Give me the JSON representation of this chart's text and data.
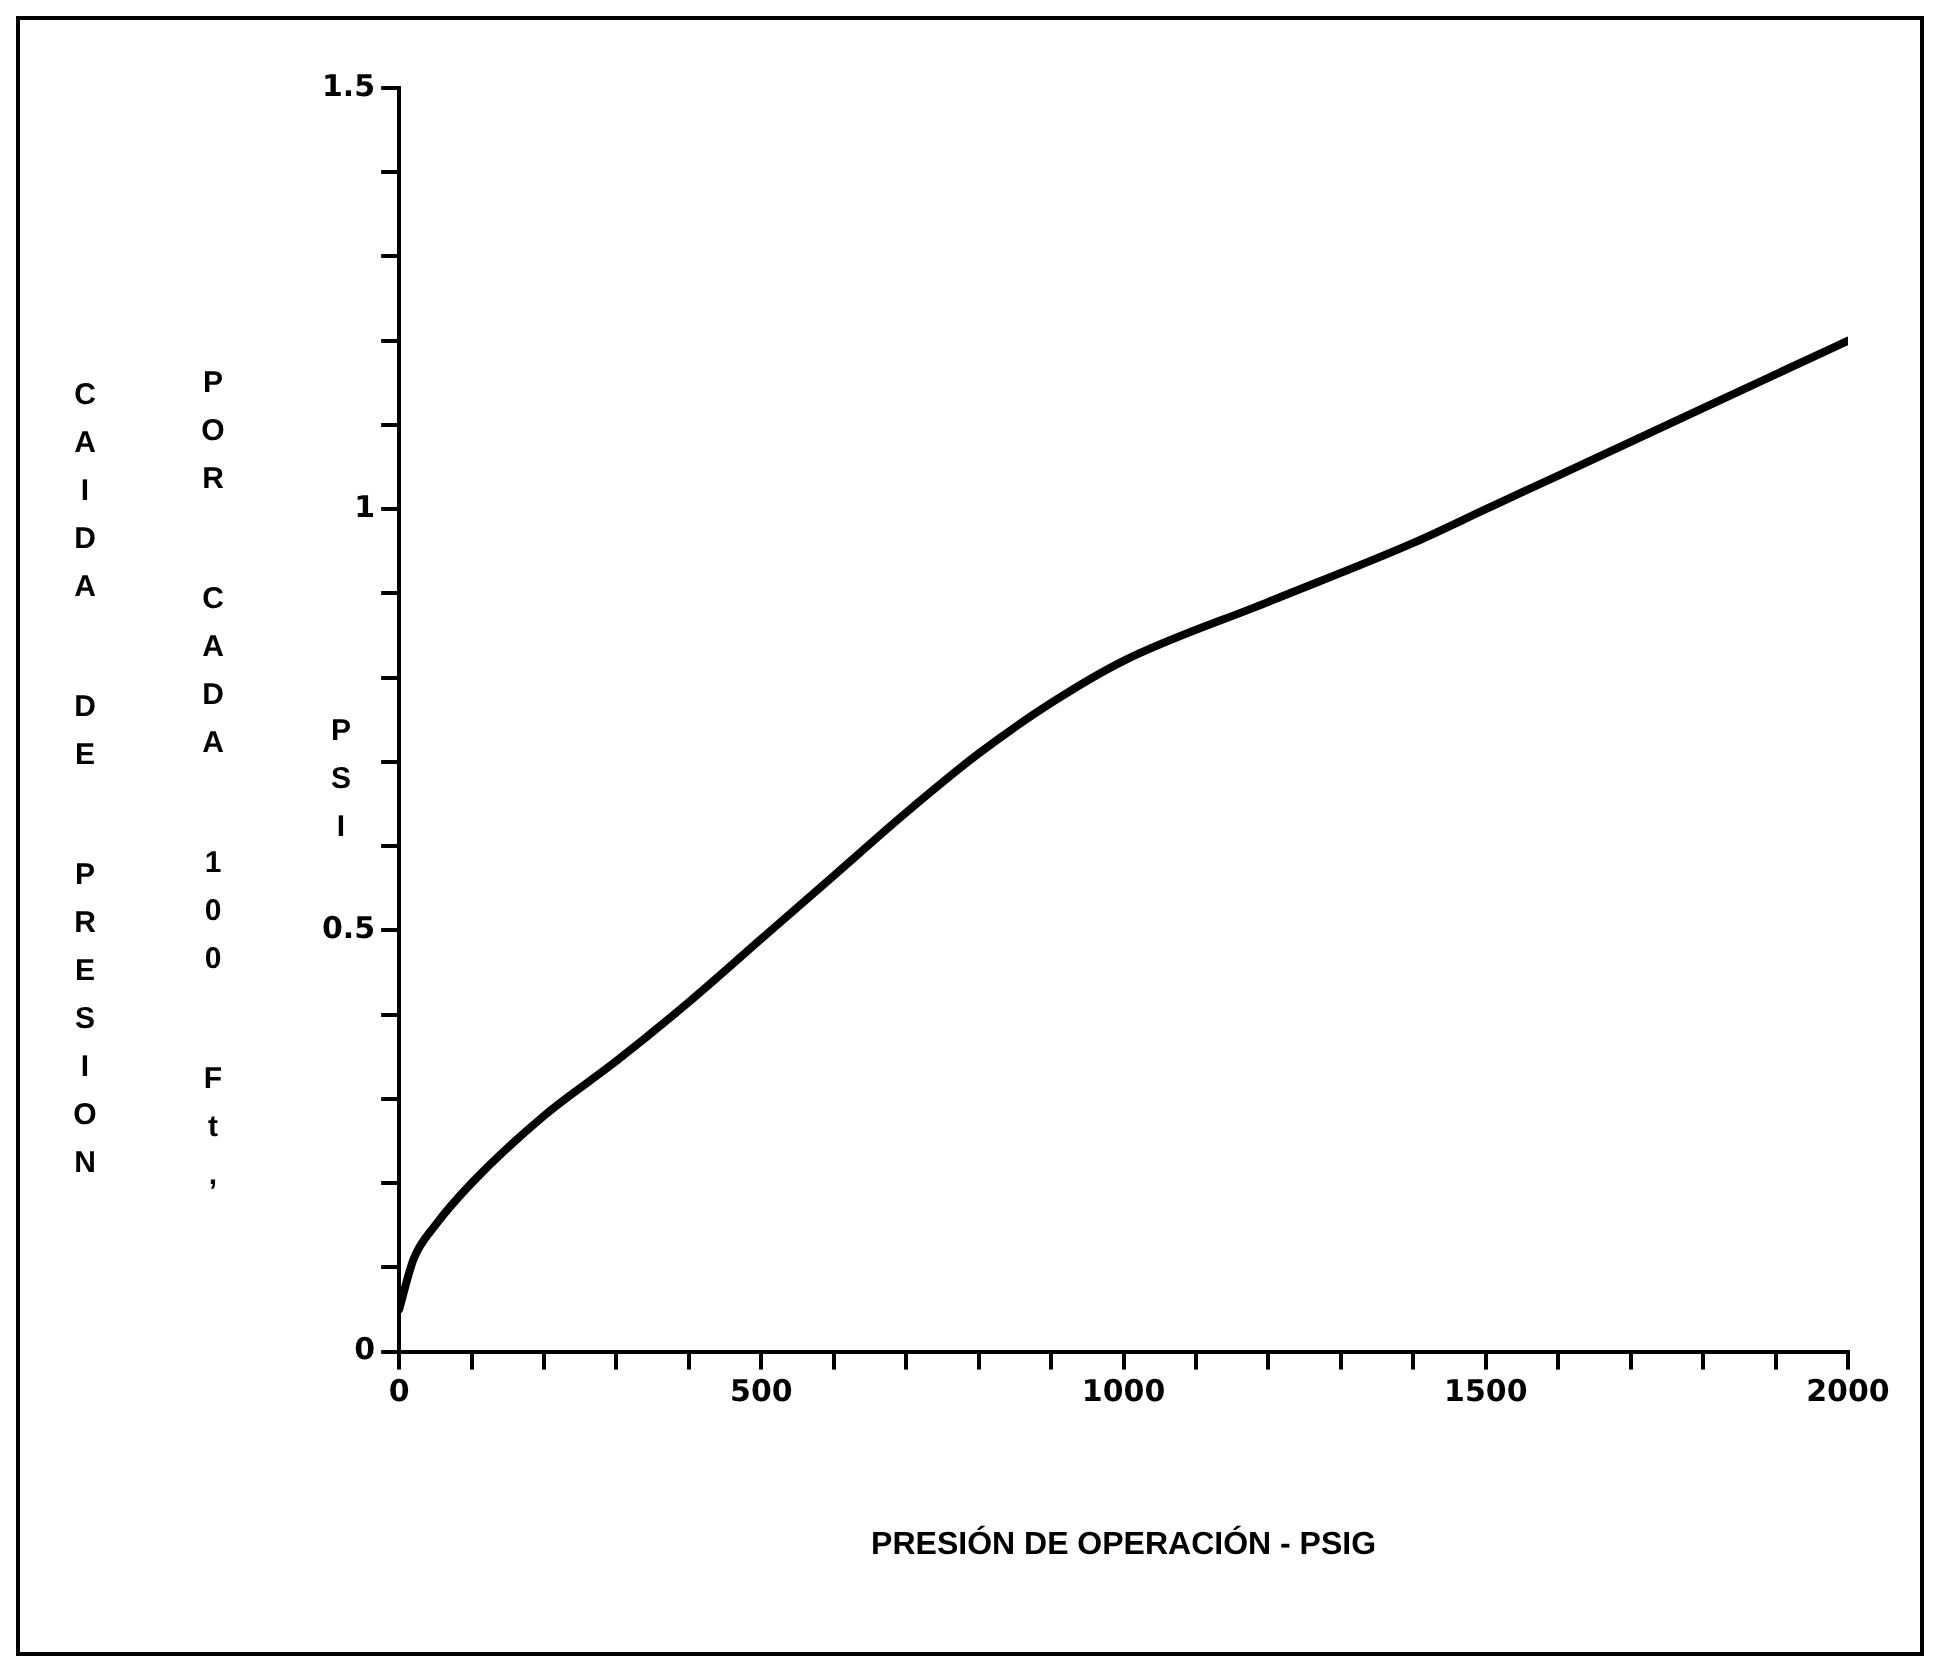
{
  "chart_data": {
    "type": "line",
    "xlabel": "PRESIÓN DE OPERACIÓN - PSIG",
    "ylabel": "CAIDA DE PRESION POR CADA 100 Ft, PSI",
    "x": [
      0,
      20,
      50,
      100,
      200,
      300,
      400,
      500,
      600,
      700,
      800,
      900,
      1000,
      1200,
      1400,
      1500,
      1600,
      1800,
      2000
    ],
    "series": [
      {
        "color": "#000000",
        "values": [
          0.05,
          0.11,
          0.15,
          0.2,
          0.28,
          0.345,
          0.415,
          0.49,
          0.565,
          0.64,
          0.71,
          0.77,
          0.82,
          0.89,
          0.96,
          1.0,
          1.04,
          1.12,
          1.2
        ]
      }
    ],
    "xlim": [
      0,
      2000
    ],
    "ylim": [
      0,
      1.5
    ],
    "xticks": [
      0,
      {
        "value": 100,
        "label": null
      },
      {
        "value": 200,
        "label": null
      },
      {
        "value": 300,
        "label": null
      },
      {
        "value": 400,
        "label": null
      },
      500,
      {
        "value": 600,
        "label": null
      },
      {
        "value": 700,
        "label": null
      },
      {
        "value": 800,
        "label": null
      },
      {
        "value": 900,
        "label": null
      },
      1000,
      {
        "value": 1100,
        "label": null
      },
      {
        "value": 1200,
        "label": null
      },
      {
        "value": 1300,
        "label": null
      },
      {
        "value": 1400,
        "label": null
      },
      1500,
      {
        "value": 1600,
        "label": null
      },
      {
        "value": 1700,
        "label": null
      },
      {
        "value": 1800,
        "label": null
      },
      {
        "value": 1900,
        "label": null
      },
      2000
    ],
    "yticks": [
      0,
      {
        "value": 0.1,
        "label": null
      },
      {
        "value": 0.2,
        "label": null
      },
      {
        "value": 0.3,
        "label": null
      },
      {
        "value": 0.4,
        "label": null
      },
      0.5,
      {
        "value": 0.6,
        "label": null
      },
      {
        "value": 0.7,
        "label": null
      },
      {
        "value": 0.8,
        "label": null
      },
      {
        "value": 0.9,
        "label": null
      },
      1,
      {
        "value": 1.1,
        "label": null
      },
      {
        "value": 1.2,
        "label": null
      },
      {
        "value": 1.3,
        "label": null
      },
      {
        "value": 1.4,
        "label": null
      },
      1.5
    ],
    "grid": false,
    "legend": false,
    "marker": "none",
    "line_style": "solid"
  }
}
